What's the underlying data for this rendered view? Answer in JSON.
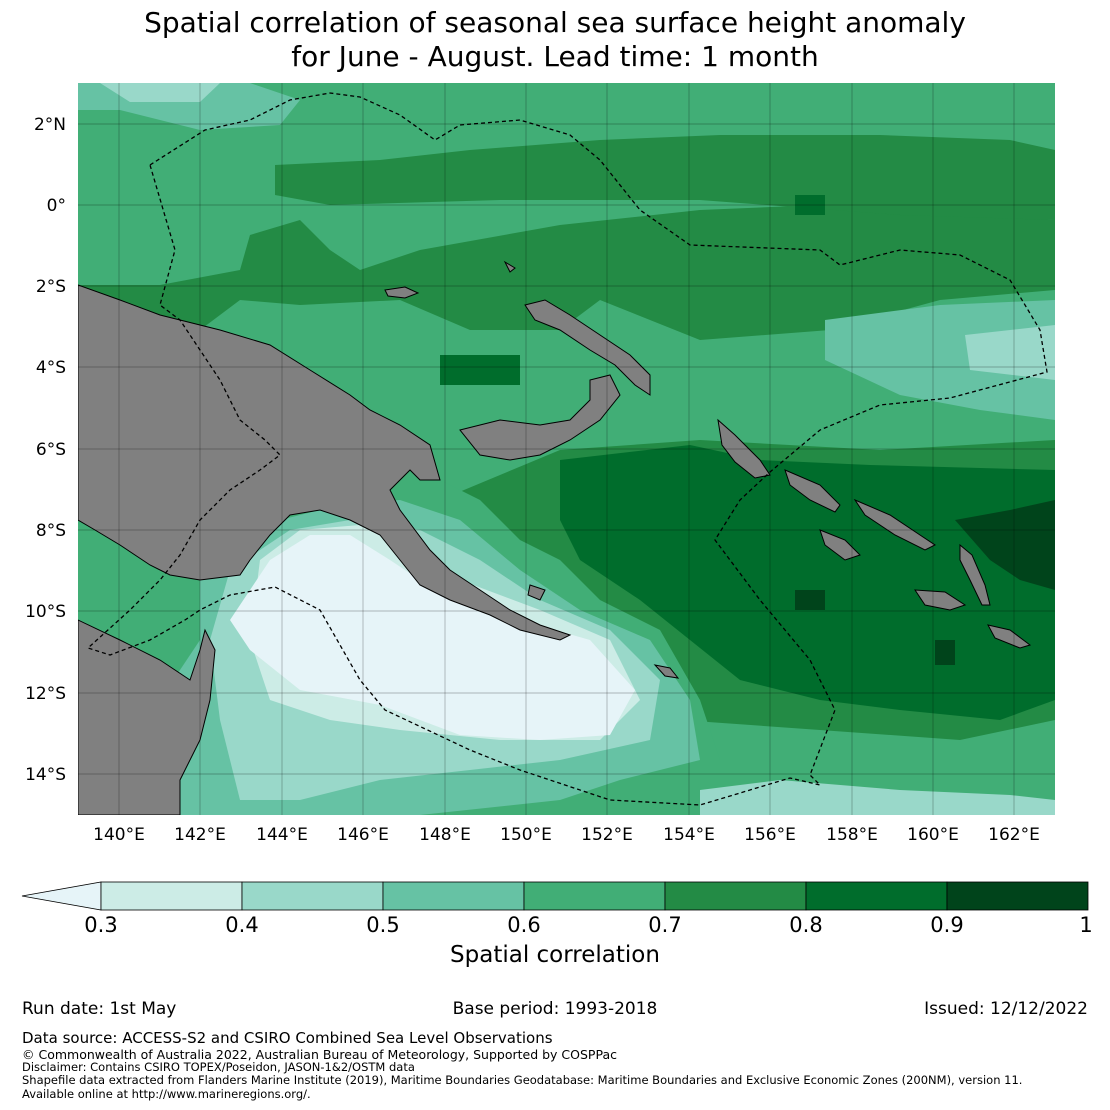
{
  "title": {
    "line1": "Spatial correlation of seasonal sea surface height anomaly",
    "line2": "for June - August. Lead time: 1 month"
  },
  "map": {
    "lat_labels": [
      "2°N",
      "0°",
      "2°S",
      "4°S",
      "6°S",
      "8°S",
      "10°S",
      "12°S",
      "14°S"
    ],
    "lon_labels": [
      "140°E",
      "142°E",
      "144°E",
      "146°E",
      "148°E",
      "150°E",
      "152°E",
      "154°E",
      "156°E",
      "158°E",
      "160°E",
      "162°E"
    ],
    "extent": {
      "lon_min": 139,
      "lon_max": 163,
      "lat_min": -15,
      "lat_max": 3
    },
    "land_color": "#808080",
    "gridlines": true
  },
  "colorbar": {
    "title": "Spatial correlation",
    "ticks": [
      "0.3",
      "0.4",
      "0.5",
      "0.6",
      "0.7",
      "0.8",
      "0.9",
      "1"
    ],
    "under_color": "#e6f4f8",
    "colors": [
      "#ccece6",
      "#99d8c9",
      "#66c2a4",
      "#41ae76",
      "#238b45",
      "#006d2c",
      "#00441b"
    ],
    "extend": "min"
  },
  "footer": {
    "run_date": "Run date: 1st May",
    "base_period": "Base period: 1993-2018",
    "issued": "Issued: 12/12/2022",
    "data_source": "Data source: ACCESS-S2 and CSIRO Combined Sea Level Observations",
    "copyright": "© Commonwealth of Australia 2022, Australian Bureau of Meteorology, Supported by COSPPac",
    "disclaimer": "Disclaimer: Contains CSIRO TOPEX/Poseidon, JASON-1&2/OSTM data",
    "shapefile": "Shapefile data extracted from Flanders Marine Institute (2019), Maritime Boundaries Geodatabase: Maritime Boundaries and Exclusive Economic Zones (200NM), version 11.",
    "available": "Available online at http://www.marineregions.org/."
  }
}
